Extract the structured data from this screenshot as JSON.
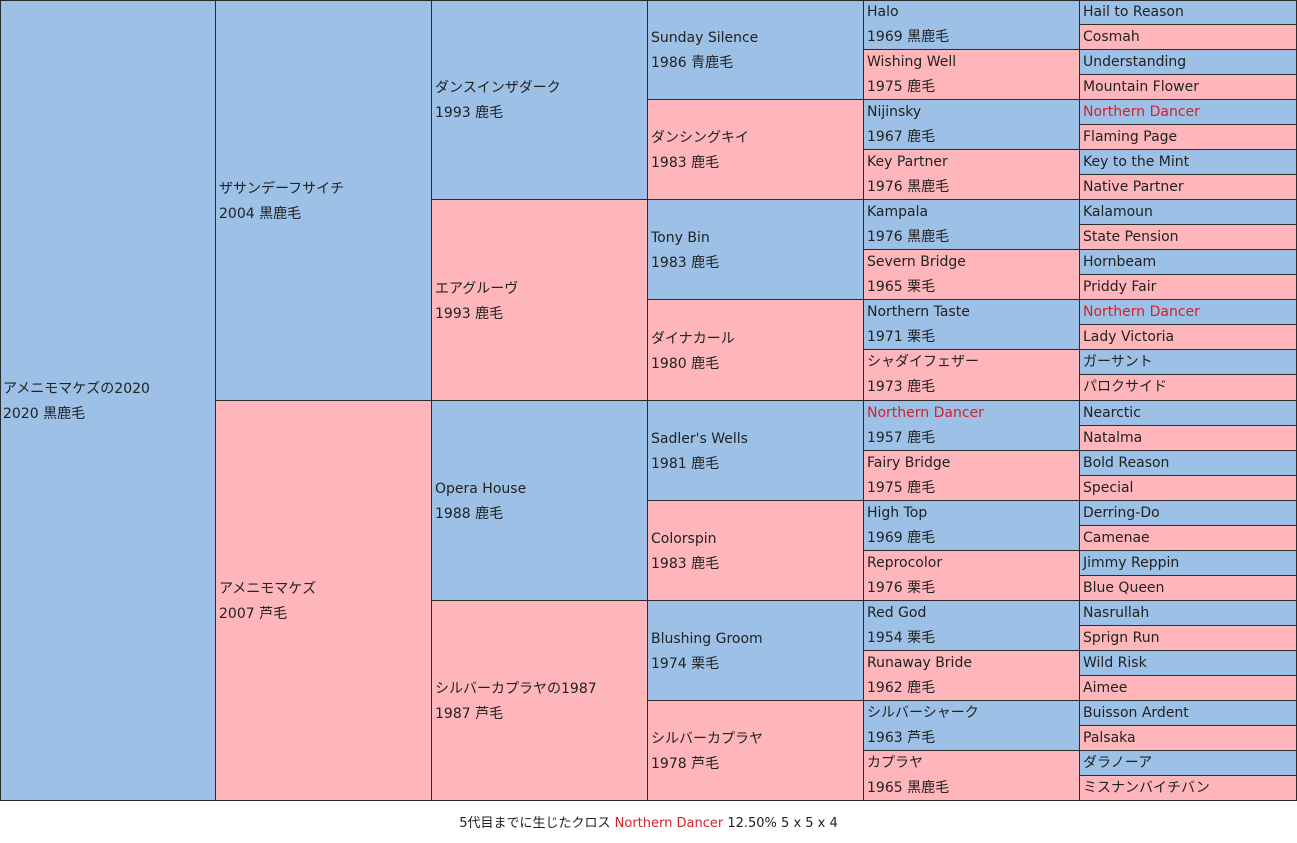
{
  "colors": {
    "male": "#9cc0e6",
    "female": "#ffb6bb",
    "cross": "#d2222a",
    "border": "#2b2b2b"
  },
  "pedigree": {
    "g1": [
      {
        "name": "アメニモマケズの2020",
        "info": "2020 黒鹿毛",
        "sex": "male"
      }
    ],
    "g2": [
      {
        "name": "ザサンデーフサイチ",
        "info": "2004 黒鹿毛",
        "sex": "male"
      },
      {
        "name": "アメニモマケズ",
        "info": "2007 芦毛",
        "sex": "female"
      }
    ],
    "g3": [
      {
        "name": "ダンスインザダーク",
        "info": "1993 鹿毛",
        "sex": "male"
      },
      {
        "name": "エアグルーヴ",
        "info": "1993 鹿毛",
        "sex": "female"
      },
      {
        "name": "Opera House",
        "info": "1988 鹿毛",
        "sex": "male"
      },
      {
        "name": "シルバーカプラヤの1987",
        "info": "1987 芦毛",
        "sex": "female"
      }
    ],
    "g4": [
      {
        "name": "Sunday Silence",
        "info": "1986 青鹿毛",
        "sex": "male"
      },
      {
        "name": "ダンシングキイ",
        "info": "1983 鹿毛",
        "sex": "female"
      },
      {
        "name": "Tony Bin",
        "info": "1983 鹿毛",
        "sex": "male"
      },
      {
        "name": "ダイナカール",
        "info": "1980 鹿毛",
        "sex": "female"
      },
      {
        "name": "Sadler's Wells",
        "info": "1981 鹿毛",
        "sex": "male"
      },
      {
        "name": "Colorspin",
        "info": "1983 鹿毛",
        "sex": "female"
      },
      {
        "name": "Blushing Groom",
        "info": "1974 栗毛",
        "sex": "male"
      },
      {
        "name": "シルバーカプラヤ",
        "info": "1978 芦毛",
        "sex": "female"
      }
    ],
    "g5": [
      {
        "name": "Halo",
        "info": "1969 黒鹿毛",
        "sex": "male"
      },
      {
        "name": "Wishing Well",
        "info": "1975 鹿毛",
        "sex": "female"
      },
      {
        "name": "Nijinsky",
        "info": "1967 鹿毛",
        "sex": "male"
      },
      {
        "name": "Key Partner",
        "info": "1976 黒鹿毛",
        "sex": "female"
      },
      {
        "name": "Kampala",
        "info": "1976 黒鹿毛",
        "sex": "male"
      },
      {
        "name": "Severn Bridge",
        "info": "1965 栗毛",
        "sex": "female"
      },
      {
        "name": "Northern Taste",
        "info": "1971 栗毛",
        "sex": "male"
      },
      {
        "name": "シャダイフェザー",
        "info": "1973 鹿毛",
        "sex": "female"
      },
      {
        "name": "Northern Dancer",
        "info": "1957 鹿毛",
        "sex": "male",
        "cross": true
      },
      {
        "name": "Fairy Bridge",
        "info": "1975 鹿毛",
        "sex": "female"
      },
      {
        "name": "High Top",
        "info": "1969 鹿毛",
        "sex": "male"
      },
      {
        "name": "Reprocolor",
        "info": "1976 栗毛",
        "sex": "female"
      },
      {
        "name": "Red God",
        "info": "1954 栗毛",
        "sex": "male"
      },
      {
        "name": "Runaway Bride",
        "info": "1962 鹿毛",
        "sex": "female"
      },
      {
        "name": "シルバーシャーク",
        "info": "1963 芦毛",
        "sex": "male"
      },
      {
        "name": "カプラヤ",
        "info": "1965 黒鹿毛",
        "sex": "female"
      }
    ],
    "g6": [
      {
        "name": "Hail to Reason",
        "sex": "male"
      },
      {
        "name": "Cosmah",
        "sex": "female"
      },
      {
        "name": "Understanding",
        "sex": "male"
      },
      {
        "name": "Mountain Flower",
        "sex": "female"
      },
      {
        "name": "Northern Dancer",
        "sex": "male",
        "cross": true
      },
      {
        "name": "Flaming Page",
        "sex": "female"
      },
      {
        "name": "Key to the Mint",
        "sex": "male"
      },
      {
        "name": "Native Partner",
        "sex": "female"
      },
      {
        "name": "Kalamoun",
        "sex": "male"
      },
      {
        "name": "State Pension",
        "sex": "female"
      },
      {
        "name": "Hornbeam",
        "sex": "male"
      },
      {
        "name": "Priddy Fair",
        "sex": "female"
      },
      {
        "name": "Northern Dancer",
        "sex": "male",
        "cross": true
      },
      {
        "name": "Lady Victoria",
        "sex": "female"
      },
      {
        "name": "ガーサント",
        "sex": "male"
      },
      {
        "name": "パロクサイド",
        "sex": "female"
      },
      {
        "name": "Nearctic",
        "sex": "male"
      },
      {
        "name": "Natalma",
        "sex": "female"
      },
      {
        "name": "Bold Reason",
        "sex": "male"
      },
      {
        "name": "Special",
        "sex": "female"
      },
      {
        "name": "Derring-Do",
        "sex": "male"
      },
      {
        "name": "Camenae",
        "sex": "female"
      },
      {
        "name": "Jimmy Reppin",
        "sex": "male"
      },
      {
        "name": "Blue Queen",
        "sex": "female"
      },
      {
        "name": "Nasrullah",
        "sex": "male"
      },
      {
        "name": "Sprign Run",
        "sex": "female"
      },
      {
        "name": "Wild Risk",
        "sex": "male"
      },
      {
        "name": "Aimee",
        "sex": "female"
      },
      {
        "name": "Buisson Ardent",
        "sex": "male"
      },
      {
        "name": "Palsaka",
        "sex": "female"
      },
      {
        "name": "ダラノーア",
        "sex": "male"
      },
      {
        "name": "ミスナンバイチバン",
        "sex": "female"
      }
    ]
  },
  "footer": {
    "prefix": "5代目までに生じたクロス",
    "cross_name": "Northern Dancer",
    "stats": "12.50% 5 x 5 x 4"
  }
}
